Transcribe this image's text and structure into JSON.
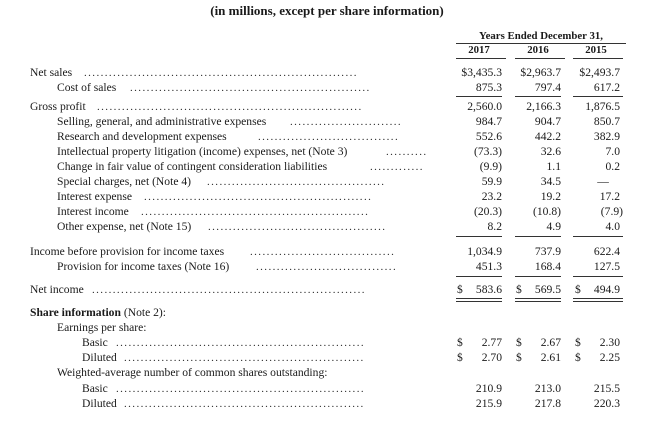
{
  "subtitle": "(in millions, except per share information)",
  "period_header": "Years Ended December 31,",
  "years": [
    "2017",
    "2016",
    "2015"
  ],
  "rows": {
    "net_sales": {
      "label": "Net sales",
      "values": [
        "$3,435.3",
        "$2,963.7",
        "$2,493.7"
      ]
    },
    "cost_of_sales": {
      "label": "Cost of sales",
      "values": [
        "875.3",
        "797.4",
        "617.2"
      ]
    },
    "gross_profit": {
      "label": "Gross profit",
      "values": [
        "2,560.0",
        "2,166.3",
        "1,876.5"
      ]
    },
    "sga": {
      "label": "Selling, general, and administrative expenses",
      "values": [
        "984.7",
        "904.7",
        "850.7"
      ]
    },
    "rd": {
      "label": "Research and development expenses",
      "values": [
        "552.6",
        "442.2",
        "382.9"
      ]
    },
    "ip_litigation": {
      "label": "Intellectual property litigation (income) expenses, net (Note 3)",
      "values": [
        "(73.3)",
        "32.6",
        "7.0"
      ]
    },
    "contingent": {
      "label": "Change in fair value of contingent consideration liabilities",
      "values": [
        "(9.9)",
        "1.1",
        "0.2"
      ]
    },
    "special": {
      "label": "Special charges, net (Note 4)",
      "values": [
        "59.9",
        "34.5",
        "—"
      ]
    },
    "interest_expense": {
      "label": "Interest expense",
      "values": [
        "23.2",
        "19.2",
        "17.2"
      ]
    },
    "interest_income": {
      "label": "Interest income",
      "values": [
        "(20.3)",
        "(10.8)",
        "(7.9)"
      ]
    },
    "other_expense": {
      "label": "Other expense, net (Note 15)",
      "values": [
        "8.2",
        "4.9",
        "4.0"
      ]
    },
    "income_before_tax": {
      "label": "Income before provision for income taxes",
      "values": [
        "1,034.9",
        "737.9",
        "622.4"
      ]
    },
    "provision": {
      "label": "Provision for income taxes (Note 16)",
      "values": [
        "451.3",
        "168.4",
        "127.5"
      ]
    },
    "net_income": {
      "label": "Net income",
      "values": [
        "583.6",
        "569.5",
        "494.9"
      ]
    },
    "share_info_bold": "Share information",
    "share_info_note": " (Note 2):",
    "eps_header": "Earnings per share:",
    "eps_basic": {
      "label": "Basic",
      "values": [
        "2.77",
        "2.67",
        "2.30"
      ]
    },
    "eps_diluted": {
      "label": "Diluted",
      "values": [
        "2.70",
        "2.61",
        "2.25"
      ]
    },
    "wa_header": "Weighted-average number of common shares outstanding:",
    "wa_basic": {
      "label": "Basic",
      "values": [
        "210.9",
        "213.0",
        "215.5"
      ]
    },
    "wa_diluted": {
      "label": "Diluted",
      "values": [
        "215.9",
        "217.8",
        "220.3"
      ]
    }
  },
  "dollar_sign": "$"
}
